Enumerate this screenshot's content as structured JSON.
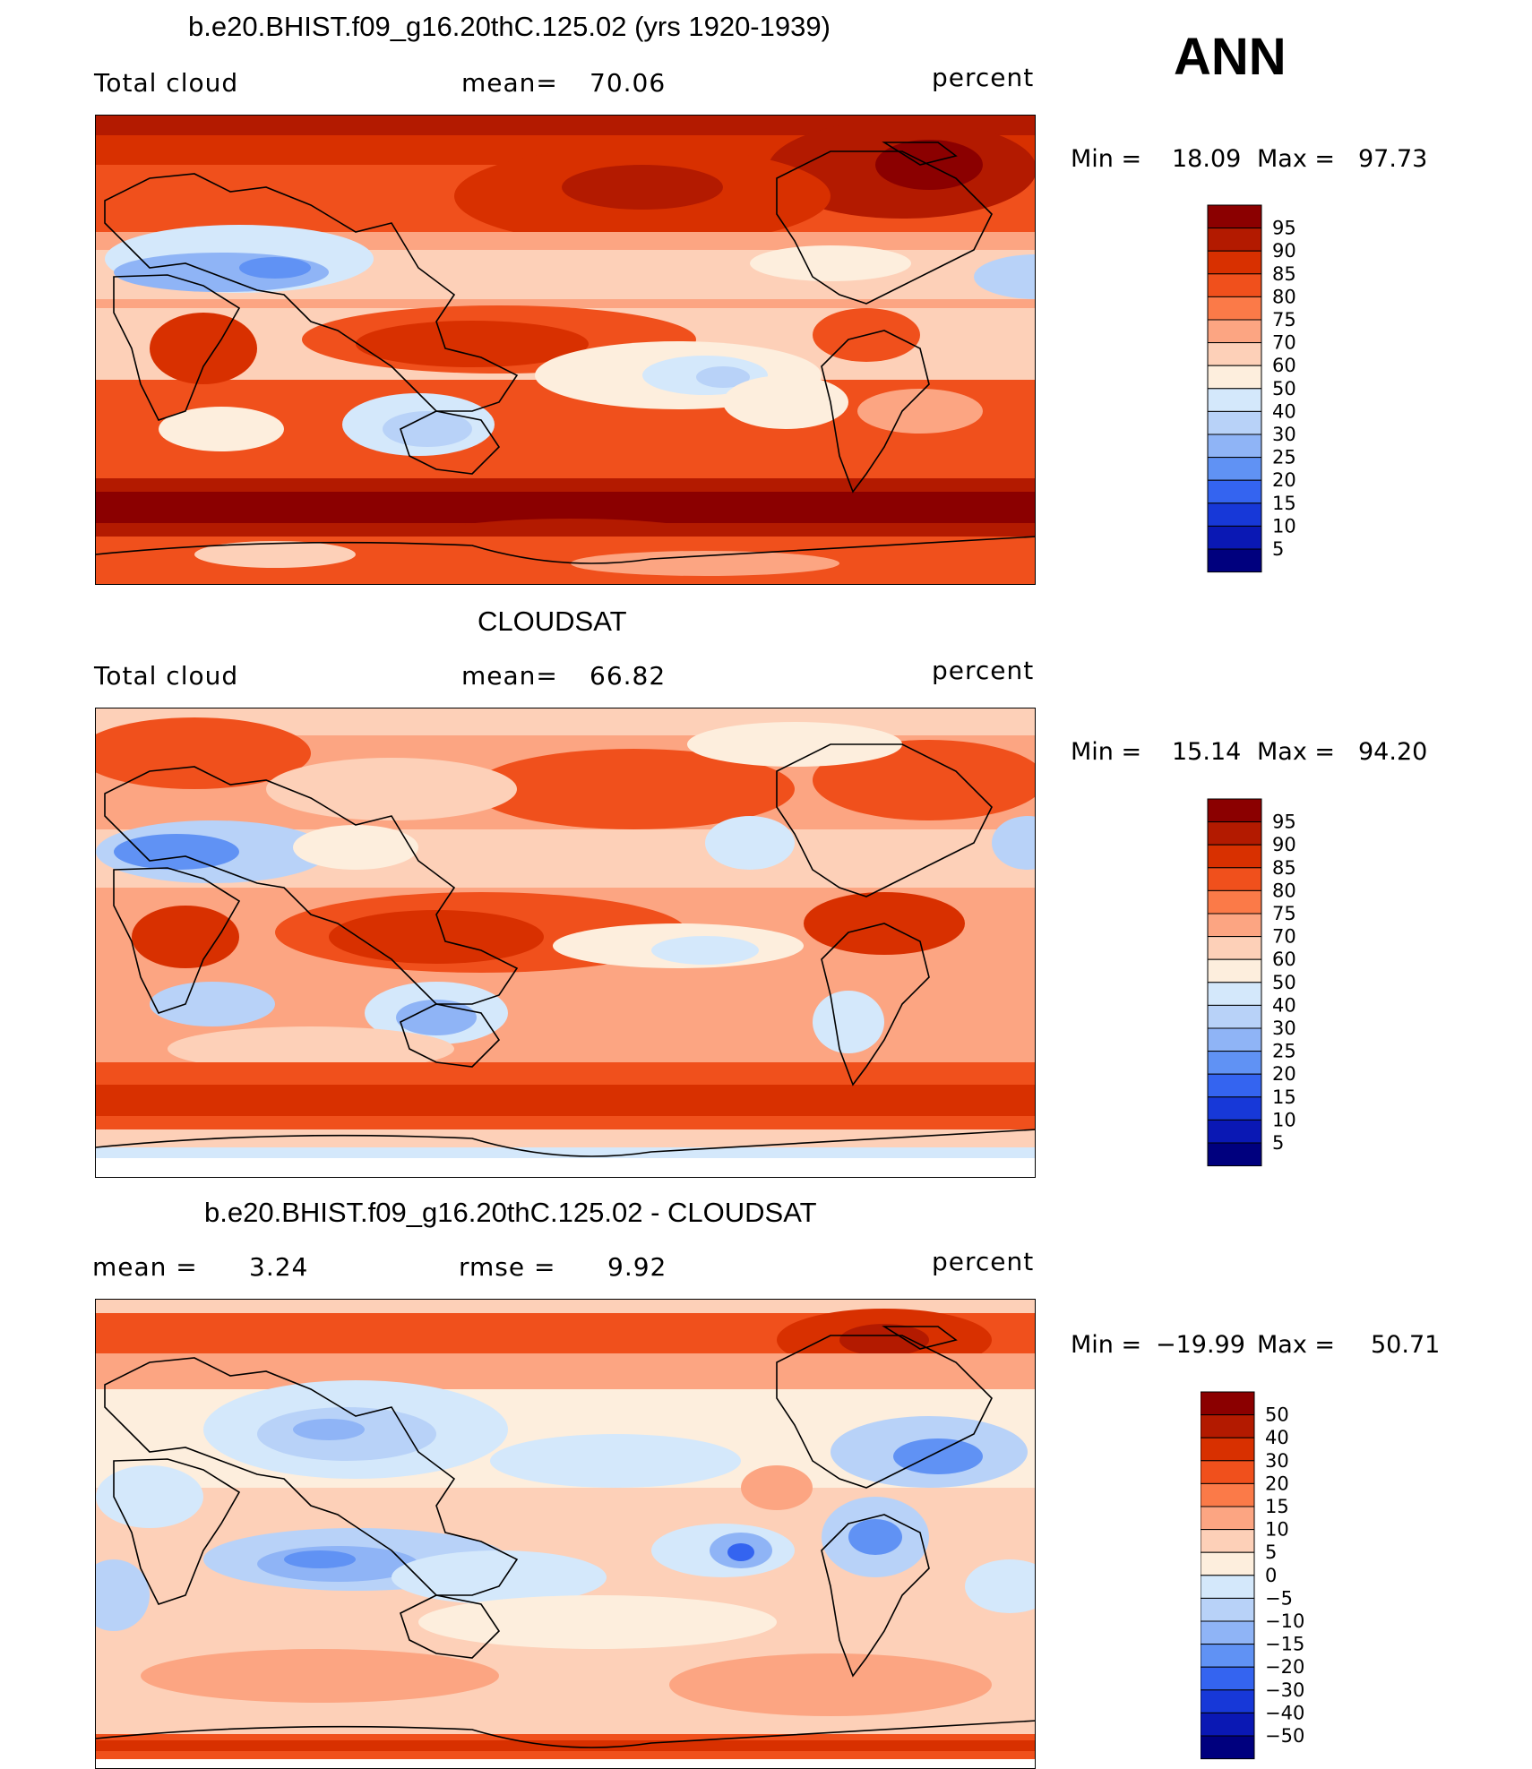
{
  "season": "ANN",
  "panels": [
    {
      "id": "model",
      "title": "b.e20.BHIST.f09_g16.20thC.125.02 (yrs 1920-1939)",
      "left_label": "Total cloud",
      "center_label": "mean=",
      "center_value": "70.06",
      "units": "percent",
      "min_label": "Min =",
      "min_value": "18.09",
      "max_label": "Max =",
      "max_value": "97.73"
    },
    {
      "id": "obs",
      "title": "CLOUDSAT",
      "left_label": "Total cloud",
      "center_label": "mean=",
      "center_value": "66.82",
      "units": "percent",
      "min_label": "Min =",
      "min_value": "15.14",
      "max_label": "Max =",
      "max_value": "94.20"
    },
    {
      "id": "diff",
      "title": "b.e20.BHIST.f09_g16.20thC.125.02 - CLOUDSAT",
      "left_label": "mean =",
      "left_value": "3.24",
      "center_label": "rmse =",
      "center_value": "9.92",
      "units": "percent",
      "min_label": "Min =",
      "min_value": "−19.99",
      "max_label": "Max =",
      "max_value": "50.71"
    }
  ],
  "colorbars": {
    "absolute": {
      "labels": [
        "95",
        "90",
        "85",
        "80",
        "75",
        "70",
        "60",
        "50",
        "40",
        "30",
        "25",
        "20",
        "15",
        "10",
        "5"
      ],
      "colors": [
        "#8b0000",
        "#b31a00",
        "#d83000",
        "#f0501c",
        "#fb7a48",
        "#fca582",
        "#fdd0b8",
        "#fdeedd",
        "#d4e8fb",
        "#b8d2f8",
        "#8fb4f6",
        "#6092f4",
        "#3464f0",
        "#1738d8",
        "#0a18b4",
        "#00007e"
      ]
    },
    "difference": {
      "labels": [
        "50",
        "40",
        "30",
        "20",
        "15",
        "10",
        "5",
        "0",
        "−5",
        "−10",
        "−15",
        "−20",
        "−30",
        "−40",
        "−50"
      ],
      "colors": [
        "#8b0000",
        "#b31a00",
        "#d83000",
        "#f0501c",
        "#fb7a48",
        "#fca582",
        "#fdd0b8",
        "#fdeedd",
        "#d4e8fb",
        "#b8d2f8",
        "#8fb4f6",
        "#6092f4",
        "#3464f0",
        "#1738d8",
        "#0a18b4",
        "#00007e"
      ]
    }
  },
  "chart_data": [
    {
      "type": "heatmap",
      "title": "b.e20.BHIST.f09_g16.20thC.125.02 (yrs 1920-1939)",
      "variable": "Total cloud",
      "units": "percent",
      "mean": 70.06,
      "min": 18.09,
      "max": 97.73,
      "contour_levels": [
        5,
        10,
        15,
        20,
        25,
        30,
        40,
        50,
        60,
        70,
        75,
        80,
        85,
        90,
        95
      ]
    },
    {
      "type": "heatmap",
      "title": "CLOUDSAT",
      "variable": "Total cloud",
      "units": "percent",
      "mean": 66.82,
      "min": 15.14,
      "max": 94.2,
      "contour_levels": [
        5,
        10,
        15,
        20,
        25,
        30,
        40,
        50,
        60,
        70,
        75,
        80,
        85,
        90,
        95
      ]
    },
    {
      "type": "heatmap",
      "title": "b.e20.BHIST.f09_g16.20thC.125.02 - CLOUDSAT",
      "units": "percent",
      "mean": 3.24,
      "rmse": 9.92,
      "min": -19.99,
      "max": 50.71,
      "contour_levels": [
        -50,
        -40,
        -30,
        -20,
        -15,
        -10,
        -5,
        0,
        5,
        10,
        15,
        20,
        30,
        40,
        50
      ]
    }
  ]
}
